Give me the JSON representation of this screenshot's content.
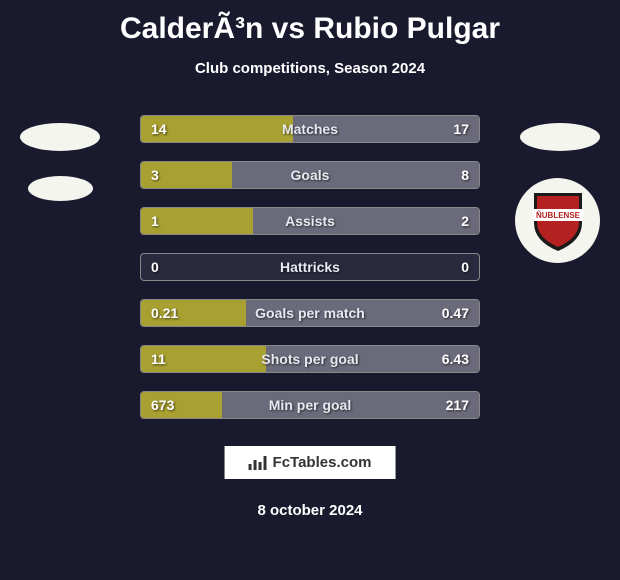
{
  "title": "CalderÃ³n vs Rubio Pulgar",
  "subtitle": "Club competitions, Season 2024",
  "colors": {
    "background": "#1a1a2e",
    "bar_left": "#a8a030",
    "bar_right": "#6a6a7a",
    "bar_empty": "#2a2a3e",
    "text": "#ffffff",
    "label_text": "#e8e8f0"
  },
  "stats": [
    {
      "label": "Matches",
      "left_val": "14",
      "right_val": "17",
      "left_pct": 45,
      "right_pct": 55
    },
    {
      "label": "Goals",
      "left_val": "3",
      "right_val": "8",
      "left_pct": 27,
      "right_pct": 73
    },
    {
      "label": "Assists",
      "left_val": "1",
      "right_val": "2",
      "left_pct": 33,
      "right_pct": 67
    },
    {
      "label": "Hattricks",
      "left_val": "0",
      "right_val": "0",
      "left_pct": 0,
      "right_pct": 0
    },
    {
      "label": "Goals per match",
      "left_val": "0.21",
      "right_val": "0.47",
      "left_pct": 31,
      "right_pct": 69
    },
    {
      "label": "Shots per goal",
      "left_val": "11",
      "right_val": "6.43",
      "left_pct": 37,
      "right_pct": 63
    },
    {
      "label": "Min per goal",
      "left_val": "673",
      "right_val": "217",
      "left_pct": 24,
      "right_pct": 76
    }
  ],
  "logo_text": "FcTables.com",
  "date": "8 october 2024",
  "club_badge": {
    "name": "ÑUBLENSE",
    "shield_color": "#b52020",
    "outline_color": "#1a1a1a"
  }
}
